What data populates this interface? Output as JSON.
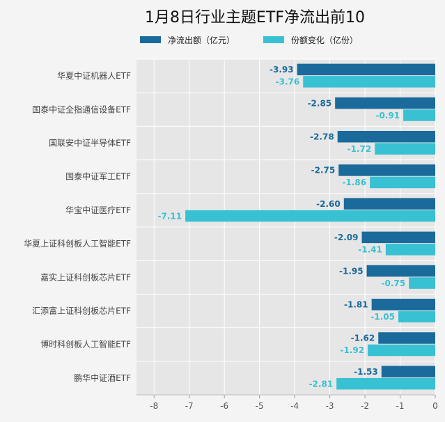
{
  "chart_data": {
    "type": "bar",
    "orientation": "horizontal",
    "title": "1月8日行业主题ETF净流出前10",
    "categories": [
      "华夏中证机器人ETF",
      "国泰中证全指通信设备ETF",
      "国联安中证半导体ETF",
      "国泰中证军工ETF",
      "华宝中证医疗ETF",
      "华夏上证科创板人工智能ETF",
      "嘉实上证科创板芯片ETF",
      "汇添富上证科创板芯片ETF",
      "博时科创板人工智能ETF",
      "鹏华中证酒ETF"
    ],
    "series": [
      {
        "name": "净流出额（亿元）",
        "color": "#1a6a9b",
        "values": [
          -3.93,
          -2.85,
          -2.78,
          -2.75,
          -2.6,
          -2.09,
          -1.95,
          -1.81,
          -1.62,
          -1.53
        ]
      },
      {
        "name": "份额变化（亿份）",
        "color": "#38c1d3",
        "values": [
          -3.76,
          -0.91,
          -1.72,
          -1.86,
          -7.11,
          -1.41,
          -0.75,
          -1.05,
          -1.92,
          -2.81
        ]
      }
    ],
    "xlim": [
      -8.5,
      0
    ],
    "xticks": [
      -8,
      -7,
      -6,
      -5,
      -4,
      -3,
      -2,
      -1,
      0
    ],
    "grid": true,
    "legend_position": "top"
  }
}
